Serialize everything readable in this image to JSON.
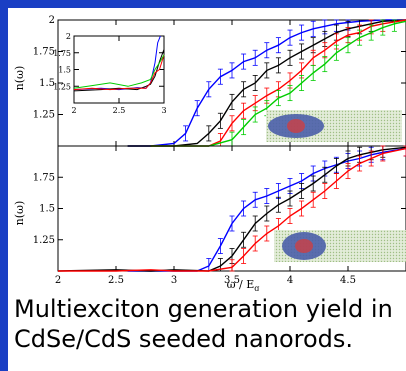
{
  "caption": {
    "line1": "Multiexciton generation yield in",
    "line2": "CdSe/CdS seeded nanorods."
  },
  "colors": {
    "frame": "#1a3fc4",
    "series": [
      "#0000ff",
      "#000000",
      "#ff0000",
      "#00cc00"
    ],
    "nanorod_body": "#4a5fa8",
    "nanorod_seed": "#d43c3c",
    "lattice": "#b8cfa0"
  },
  "chart_data": [
    {
      "type": "line",
      "title": "",
      "xlabel": "",
      "ylabel": "n(ω)",
      "xlim": [
        2,
        5
      ],
      "ylim": [
        1,
        2
      ],
      "yticks": [
        "1.25",
        "1.5",
        "1.75",
        "2"
      ],
      "series": [
        {
          "x": [
            2.6,
            2.8,
            3.0,
            3.1,
            3.2,
            3.3,
            3.4,
            3.5,
            3.6,
            3.7,
            3.8,
            3.9,
            4.0,
            4.1,
            4.2,
            4.3,
            4.4,
            4.5,
            4.6,
            4.8,
            5.0
          ],
          "values": [
            1.0,
            1.0,
            1.02,
            1.1,
            1.3,
            1.45,
            1.55,
            1.6,
            1.67,
            1.7,
            1.76,
            1.8,
            1.86,
            1.9,
            1.93,
            1.95,
            1.97,
            1.98,
            1.99,
            2.0,
            2.0
          ]
        },
        {
          "x": [
            2.6,
            2.8,
            3.0,
            3.2,
            3.3,
            3.4,
            3.5,
            3.6,
            3.7,
            3.8,
            3.9,
            4.0,
            4.1,
            4.2,
            4.3,
            4.4,
            4.5,
            4.6,
            4.7,
            4.8,
            5.0
          ],
          "values": [
            1.0,
            1.0,
            1.0,
            1.02,
            1.1,
            1.2,
            1.35,
            1.45,
            1.5,
            1.6,
            1.64,
            1.7,
            1.75,
            1.8,
            1.85,
            1.9,
            1.93,
            1.95,
            1.97,
            1.99,
            2.0
          ]
        },
        {
          "x": [
            2.8,
            3.0,
            3.3,
            3.4,
            3.5,
            3.6,
            3.7,
            3.8,
            3.9,
            4.0,
            4.1,
            4.2,
            4.3,
            4.4,
            4.5,
            4.6,
            4.7,
            4.8,
            5.0
          ],
          "values": [
            1.0,
            1.0,
            1.0,
            1.04,
            1.18,
            1.28,
            1.34,
            1.4,
            1.45,
            1.52,
            1.6,
            1.7,
            1.76,
            1.83,
            1.88,
            1.9,
            1.95,
            1.97,
            2.0
          ]
        },
        {
          "x": [
            2.8,
            3.0,
            3.3,
            3.5,
            3.6,
            3.7,
            3.8,
            3.9,
            4.0,
            4.1,
            4.2,
            4.3,
            4.4,
            4.5,
            4.6,
            4.7,
            4.8,
            4.9,
            5.0
          ],
          "values": [
            1.0,
            1.0,
            1.0,
            1.05,
            1.15,
            1.25,
            1.3,
            1.38,
            1.42,
            1.5,
            1.58,
            1.65,
            1.74,
            1.8,
            1.86,
            1.9,
            1.94,
            1.97,
            1.99
          ]
        }
      ],
      "inset": {
        "xlim": [
          2,
          3
        ],
        "ylim": [
          1,
          2
        ],
        "xticks": [
          "2",
          "2.5",
          "3"
        ],
        "series": [
          {
            "x": [
              2.0,
              2.3,
              2.5,
              2.7,
              2.8,
              2.85,
              2.9,
              2.93,
              2.96
            ],
            "values": [
              1.2,
              1.22,
              1.2,
              1.23,
              1.22,
              1.3,
              1.6,
              1.9,
              2.0
            ]
          },
          {
            "x": [
              2.0,
              2.3,
              2.5,
              2.7,
              2.8,
              2.85,
              2.9,
              2.95,
              3.0
            ],
            "values": [
              1.18,
              1.2,
              1.22,
              1.2,
              1.25,
              1.28,
              1.4,
              1.62,
              1.8
            ]
          },
          {
            "x": [
              2.0,
              2.2,
              2.4,
              2.6,
              2.8,
              2.85,
              2.9,
              2.95,
              3.0
            ],
            "values": [
              1.2,
              1.22,
              1.2,
              1.22,
              1.22,
              1.3,
              1.45,
              1.5,
              1.72
            ]
          },
          {
            "x": [
              2.0,
              2.2,
              2.4,
              2.6,
              2.75,
              2.85,
              2.9,
              2.95,
              3.0
            ],
            "values": [
              1.22,
              1.26,
              1.3,
              1.25,
              1.3,
              1.35,
              1.5,
              1.6,
              1.72
            ]
          }
        ]
      }
    },
    {
      "type": "line",
      "title": "",
      "xlabel": "ω / E_g",
      "ylabel": "n(ω)",
      "xlim": [
        2,
        5
      ],
      "ylim": [
        1,
        2
      ],
      "xticks": [
        "2",
        "2.5",
        "3",
        "3.5",
        "4",
        "4.5"
      ],
      "yticks": [
        "1.25",
        "1.5",
        "1.75"
      ],
      "series": [
        {
          "x": [
            2.6,
            2.8,
            3.0,
            3.2,
            3.3,
            3.4,
            3.5,
            3.6,
            3.7,
            3.8,
            3.9,
            4.0,
            4.1,
            4.2,
            4.3,
            4.4,
            4.5,
            4.6,
            4.7,
            4.8,
            5.0
          ],
          "values": [
            1.0,
            1.0,
            1.0,
            1.0,
            1.04,
            1.2,
            1.38,
            1.5,
            1.57,
            1.6,
            1.64,
            1.68,
            1.72,
            1.78,
            1.82,
            1.85,
            1.88,
            1.9,
            1.93,
            1.95,
            1.98
          ]
        },
        {
          "x": [
            2.0,
            2.5,
            2.8,
            3.0,
            3.3,
            3.4,
            3.5,
            3.6,
            3.7,
            3.8,
            3.9,
            4.0,
            4.1,
            4.2,
            4.3,
            4.4,
            4.5,
            4.6,
            4.7,
            4.8,
            5.0
          ],
          "values": [
            1.0,
            1.01,
            1.0,
            1.01,
            1.0,
            1.04,
            1.12,
            1.25,
            1.38,
            1.46,
            1.53,
            1.58,
            1.64,
            1.7,
            1.77,
            1.84,
            1.9,
            1.93,
            1.95,
            1.97,
            1.99
          ]
        },
        {
          "x": [
            2.0,
            2.5,
            2.8,
            3.0,
            3.3,
            3.5,
            3.6,
            3.7,
            3.8,
            3.9,
            4.0,
            4.1,
            4.2,
            4.3,
            4.4,
            4.5,
            4.6,
            4.7,
            4.8,
            5.0
          ],
          "values": [
            1.0,
            1.0,
            1.01,
            1.0,
            1.0,
            1.03,
            1.12,
            1.22,
            1.3,
            1.36,
            1.44,
            1.5,
            1.57,
            1.64,
            1.72,
            1.8,
            1.86,
            1.9,
            1.94,
            1.98
          ]
        }
      ]
    }
  ]
}
